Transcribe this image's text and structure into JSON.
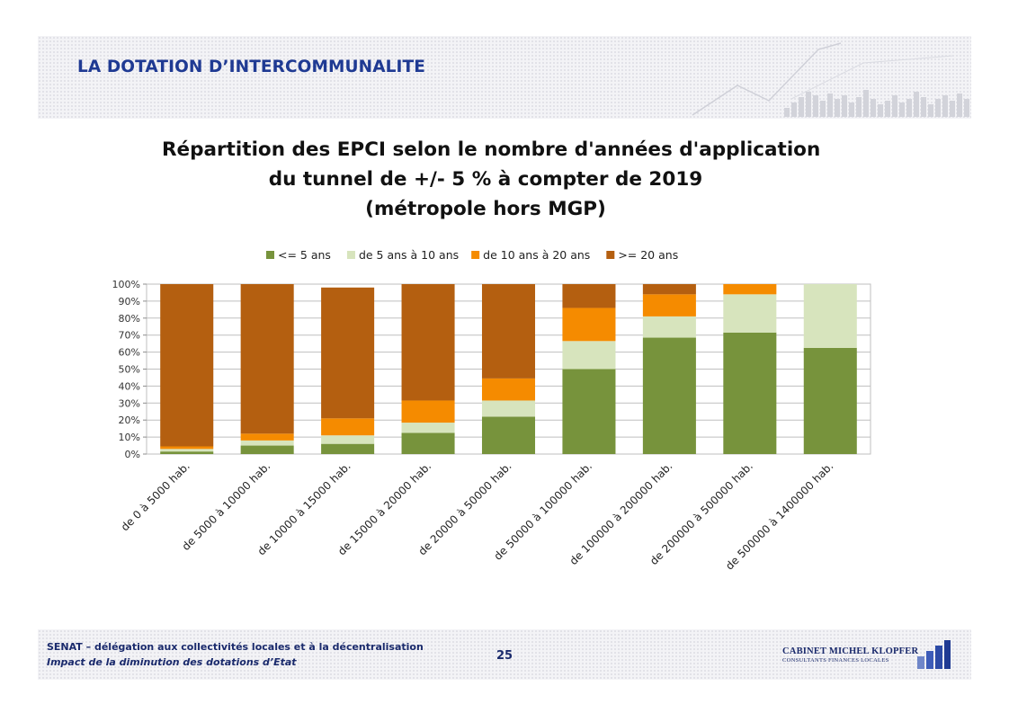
{
  "slide": {
    "header_title": "LA DOTATION D’INTERCOMMUNALITE",
    "footer_line1": "SENAT – délégation aux collectivités locales et à la décentralisation",
    "footer_line2": "Impact de la diminution des dotations d’Etat",
    "page_number": "25",
    "brand_name": "CABINET MICHEL KLOPFER",
    "brand_sub": "CONSULTANTS FINANCES LOCALES"
  },
  "chart_data": {
    "type": "bar",
    "stacked": "percent",
    "title": [
      "Répartition des EPCI selon le nombre d'années d'application",
      "du tunnel de +/- 5 % à compter de 2019",
      "(métropole hors MGP)"
    ],
    "categories": [
      "de 0 à 5000 hab.",
      "de 5000 à 10000 hab.",
      "de 10000 à 15000 hab.",
      "de 15000 à 20000 hab.",
      "de 20000 à 50000 hab.",
      "de 50000 à 100000 hab.",
      "de 100000 à 200000 hab.",
      "de 200000 à 500000 hab.",
      "de 500000 à 1400000 hab."
    ],
    "series": [
      {
        "name": "<= 5 ans",
        "color": "#77933c",
        "values": [
          1.5,
          5,
          6,
          12.5,
          22,
          50,
          68.5,
          71.5,
          62.5
        ]
      },
      {
        "name": "de 5 ans à 10 ans",
        "color": "#d7e4bd",
        "values": [
          1.5,
          3,
          5,
          6,
          9.5,
          16.5,
          12.5,
          22.5,
          37.5
        ]
      },
      {
        "name": "de 10 ans à 20 ans",
        "color": "#f58b00",
        "values": [
          1.5,
          4,
          10,
          13,
          13,
          19.5,
          13,
          6,
          0
        ]
      },
      {
        "name": ">= 20 ans",
        "color": "#b45f10",
        "values": [
          95.5,
          88,
          77,
          68.5,
          55.5,
          14,
          6,
          0,
          0
        ]
      }
    ],
    "ylim": [
      0,
      100
    ],
    "y_ticks": [
      "0%",
      "10%",
      "20%",
      "30%",
      "40%",
      "50%",
      "60%",
      "70%",
      "80%",
      "90%",
      "100%"
    ],
    "grid": true,
    "legend_position": "top"
  }
}
